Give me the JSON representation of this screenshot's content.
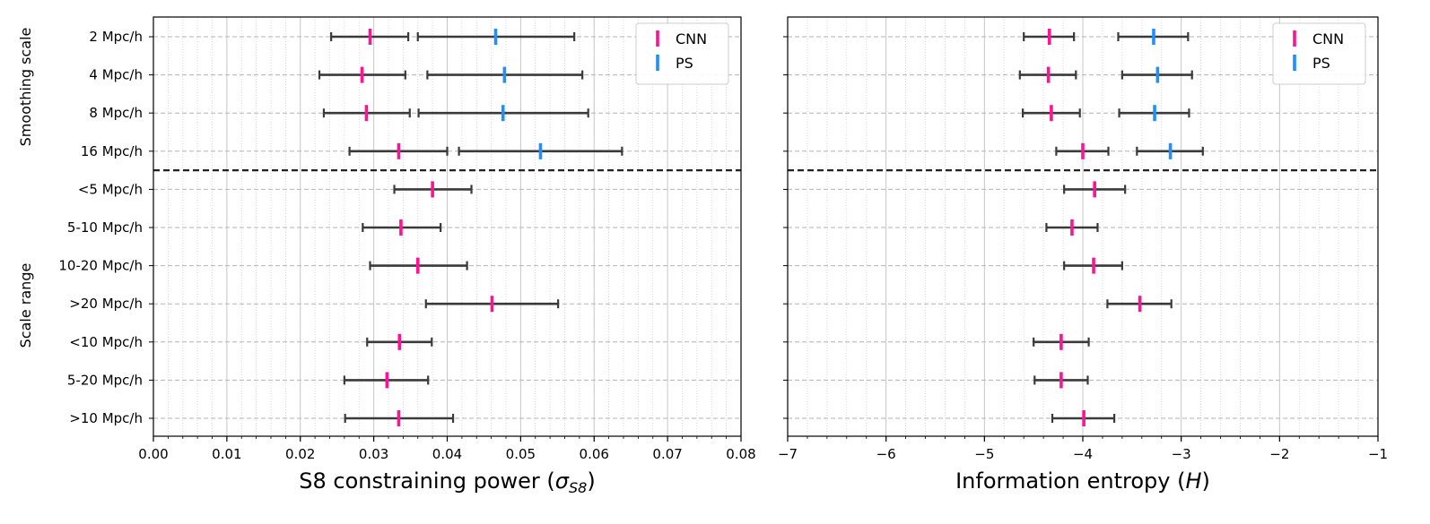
{
  "colors": {
    "cnn": "#ff1493",
    "ps": "#1e90ff",
    "errorbar": "#3a3a3a",
    "grid": "#b3b3b3",
    "separator": "#222222"
  },
  "legend": {
    "placement": "top-right",
    "entries": [
      {
        "label": "CNN",
        "series": "cnn"
      },
      {
        "label": "PS",
        "series": "ps"
      }
    ]
  },
  "group_labels": {
    "top": "Smoothing scale",
    "bottom": "Scale range"
  },
  "separator_after_row": 3,
  "chart_data": [
    {
      "type": "errorbar",
      "xlabel": "S8 constraining power (σS8)",
      "xlabel_main": "S8 constraining power (",
      "xlabel_symbol": "σ",
      "xlabel_sub": "S8",
      "xlabel_end": ")",
      "xlim": [
        0,
        0.08
      ],
      "xticks": [
        0.0,
        0.01,
        0.02,
        0.03,
        0.04,
        0.05,
        0.06,
        0.07,
        0.08
      ],
      "xtick_labels": [
        "0.00",
        "0.01",
        "0.02",
        "0.03",
        "0.04",
        "0.05",
        "0.06",
        "0.07",
        "0.08"
      ],
      "minor_step": 0.002,
      "categories": [
        "2 Mpc/h",
        "4 Mpc/h",
        "8 Mpc/h",
        "16 Mpc/h",
        "<5 Mpc/h",
        "5-10 Mpc/h",
        "10-20 Mpc/h",
        ">20 Mpc/h",
        "<10 Mpc/h",
        "5-20 Mpc/h",
        ">10 Mpc/h"
      ],
      "series": [
        {
          "name": "CNN",
          "key": "cnn",
          "points": [
            {
              "row": 0,
              "center": 0.0295,
              "low": 0.0242,
              "high": 0.0347
            },
            {
              "row": 1,
              "center": 0.0284,
              "low": 0.0226,
              "high": 0.0343
            },
            {
              "row": 2,
              "center": 0.029,
              "low": 0.0232,
              "high": 0.0349
            },
            {
              "row": 3,
              "center": 0.0334,
              "low": 0.0267,
              "high": 0.04
            },
            {
              "row": 4,
              "center": 0.038,
              "low": 0.0328,
              "high": 0.0433
            },
            {
              "row": 5,
              "center": 0.0337,
              "low": 0.0285,
              "high": 0.0391
            },
            {
              "row": 6,
              "center": 0.036,
              "low": 0.0295,
              "high": 0.0427
            },
            {
              "row": 7,
              "center": 0.0461,
              "low": 0.0371,
              "high": 0.0551
            },
            {
              "row": 8,
              "center": 0.0335,
              "low": 0.0291,
              "high": 0.0379
            },
            {
              "row": 9,
              "center": 0.0318,
              "low": 0.026,
              "high": 0.0374
            },
            {
              "row": 10,
              "center": 0.0334,
              "low": 0.0261,
              "high": 0.0408
            }
          ]
        },
        {
          "name": "PS",
          "key": "ps",
          "points": [
            {
              "row": 0,
              "center": 0.0466,
              "low": 0.036,
              "high": 0.0573
            },
            {
              "row": 1,
              "center": 0.0478,
              "low": 0.0373,
              "high": 0.0584
            },
            {
              "row": 2,
              "center": 0.0476,
              "low": 0.0361,
              "high": 0.0592
            },
            {
              "row": 3,
              "center": 0.0527,
              "low": 0.0416,
              "high": 0.0638
            }
          ]
        }
      ]
    },
    {
      "type": "errorbar",
      "xlabel": "Information entropy (H)",
      "xlabel_main": "Information entropy (",
      "xlabel_symbol": "H",
      "xlabel_sub": "",
      "xlabel_end": ")",
      "xlim": [
        -7,
        -1
      ],
      "xticks": [
        -7,
        -6,
        -5,
        -4,
        -3,
        -2,
        -1
      ],
      "xtick_labels": [
        "−7",
        "−6",
        "−5",
        "−4",
        "−3",
        "−2",
        "−1"
      ],
      "minor_step": 0.2,
      "categories": [
        "2 Mpc/h",
        "4 Mpc/h",
        "8 Mpc/h",
        "16 Mpc/h",
        "<5 Mpc/h",
        "5-10 Mpc/h",
        "10-20 Mpc/h",
        ">20 Mpc/h",
        "<10 Mpc/h",
        "5-20 Mpc/h",
        ">10 Mpc/h"
      ],
      "series": [
        {
          "name": "CNN",
          "key": "cnn",
          "points": [
            {
              "row": 0,
              "center": -4.34,
              "low": -4.6,
              "high": -4.09
            },
            {
              "row": 1,
              "center": -4.35,
              "low": -4.64,
              "high": -4.07
            },
            {
              "row": 2,
              "center": -4.32,
              "low": -4.61,
              "high": -4.03
            },
            {
              "row": 3,
              "center": -4.0,
              "low": -4.27,
              "high": -3.74
            },
            {
              "row": 4,
              "center": -3.88,
              "low": -4.19,
              "high": -3.57
            },
            {
              "row": 5,
              "center": -4.11,
              "low": -4.37,
              "high": -3.85
            },
            {
              "row": 6,
              "center": -3.89,
              "low": -4.19,
              "high": -3.6
            },
            {
              "row": 7,
              "center": -3.42,
              "low": -3.75,
              "high": -3.1
            },
            {
              "row": 8,
              "center": -4.22,
              "low": -4.5,
              "high": -3.94
            },
            {
              "row": 9,
              "center": -4.22,
              "low": -4.49,
              "high": -3.95
            },
            {
              "row": 10,
              "center": -3.99,
              "low": -4.31,
              "high": -3.68
            }
          ]
        },
        {
          "name": "PS",
          "key": "ps",
          "points": [
            {
              "row": 0,
              "center": -3.28,
              "low": -3.64,
              "high": -2.93
            },
            {
              "row": 1,
              "center": -3.24,
              "low": -3.6,
              "high": -2.89
            },
            {
              "row": 2,
              "center": -3.27,
              "low": -3.63,
              "high": -2.92
            },
            {
              "row": 3,
              "center": -3.11,
              "low": -3.45,
              "high": -2.78
            }
          ]
        }
      ]
    }
  ]
}
